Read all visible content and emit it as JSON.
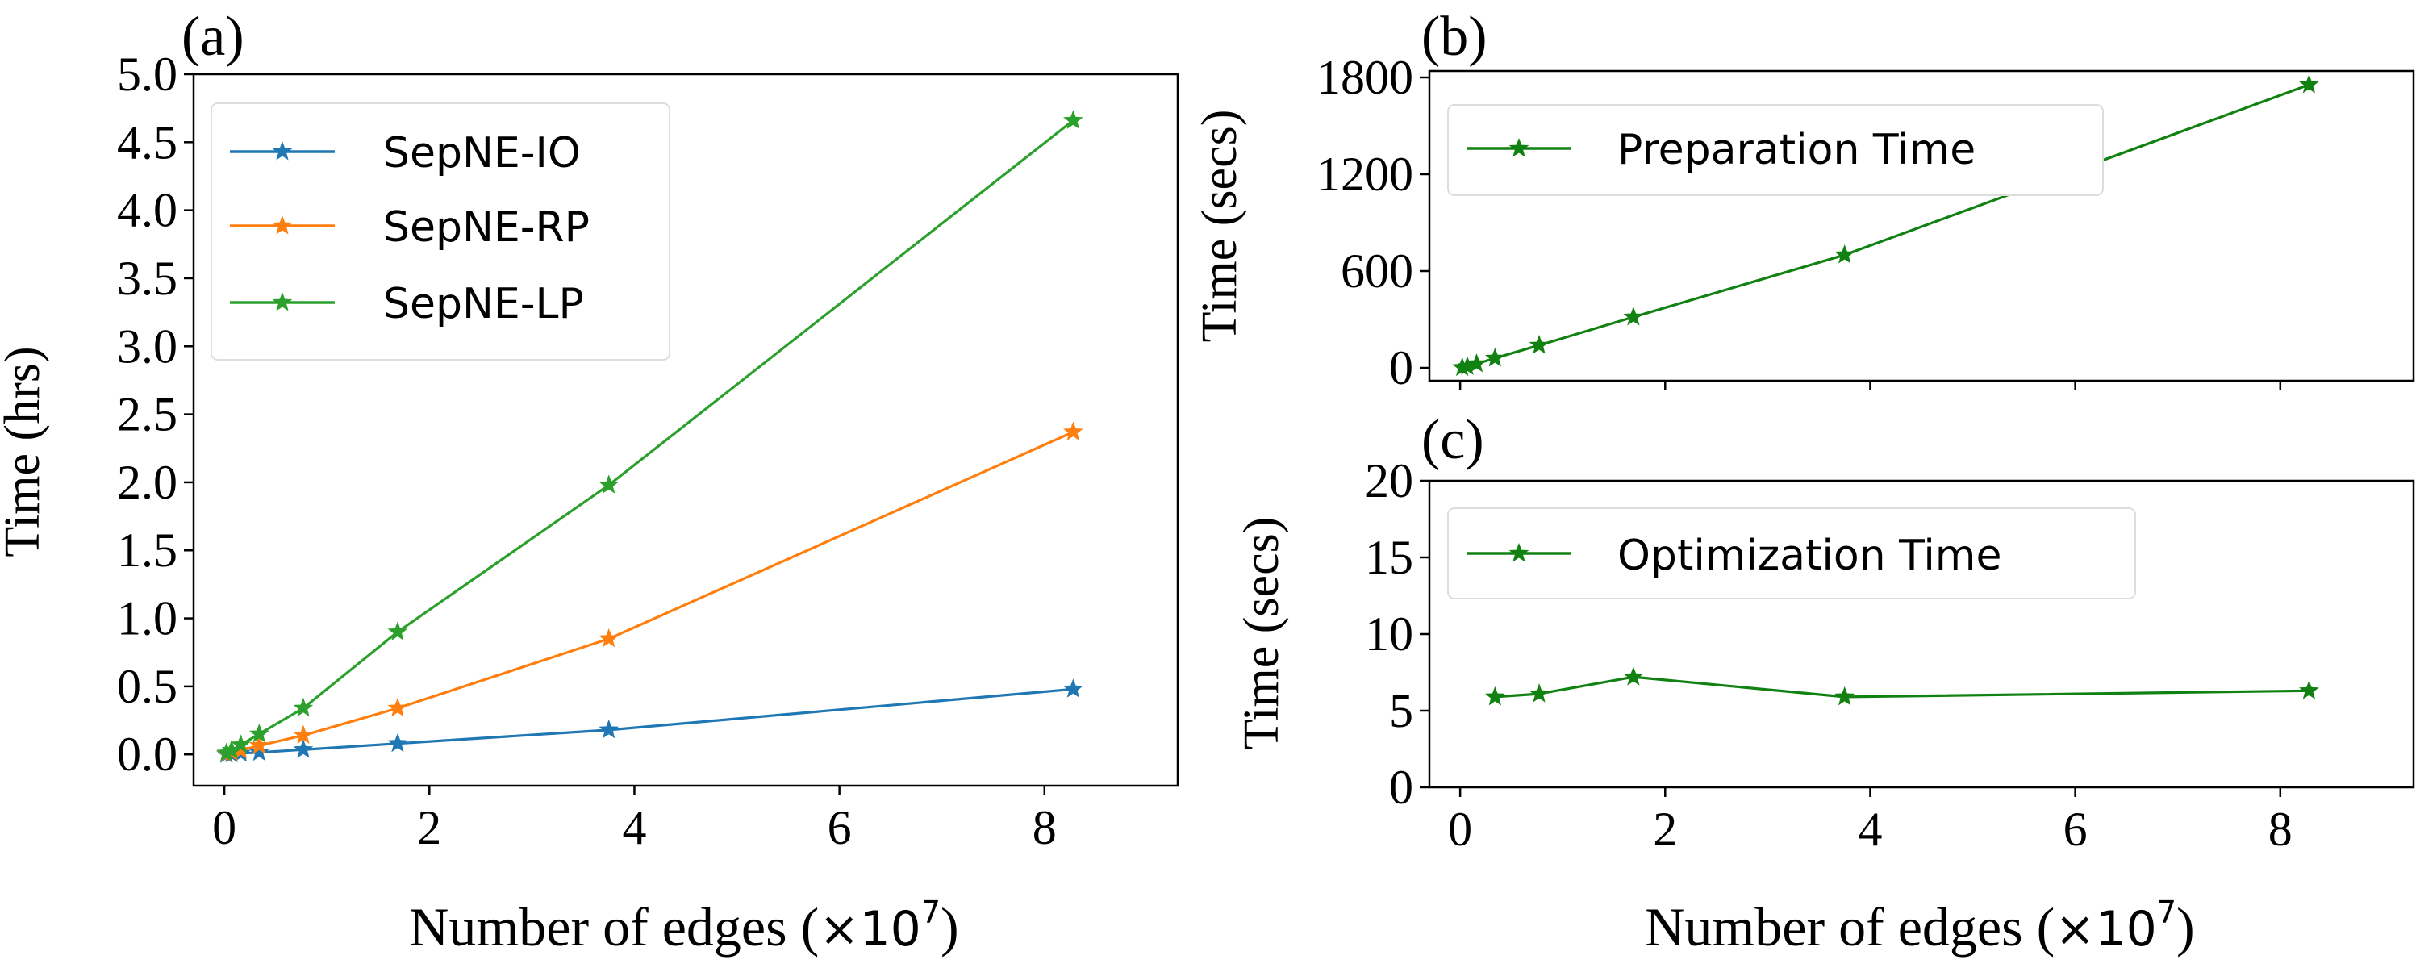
{
  "colors": {
    "blue": "#1f77b4",
    "orange": "#ff7f0e",
    "green_a": "#2ca02c",
    "green_bc": "#118211",
    "axis": "#000000",
    "legend_border": "#dddddd"
  },
  "chart_data": [
    {
      "id": "a",
      "panel_label": "(a)",
      "type": "line",
      "marker": "star",
      "xlabel_main": "Number of edges (",
      "xlabel_mult": "×10",
      "xlabel_exp": "7",
      "xlabel_close": ")",
      "ylabel": "Time (hrs)",
      "xlim": [
        -0.3,
        9.3
      ],
      "ylim": [
        -0.23,
        5.0
      ],
      "xticks": [
        0,
        2,
        4,
        6,
        8
      ],
      "xtick_labels": [
        "0",
        "2",
        "4",
        "6",
        "8"
      ],
      "yticks": [
        0.0,
        0.5,
        1.0,
        1.5,
        2.0,
        2.5,
        3.0,
        3.5,
        4.0,
        4.5,
        5.0
      ],
      "ytick_labels": [
        "0.0",
        "0.5",
        "1.0",
        "1.5",
        "2.0",
        "2.5",
        "3.0",
        "3.5",
        "4.0",
        "4.5",
        "5.0"
      ],
      "legend_position": "upper-left",
      "series": [
        {
          "name": "SepNE-IO",
          "color": "#1f77b4",
          "x": [
            0.02,
            0.07,
            0.16,
            0.34,
            0.77,
            1.69,
            3.75,
            8.28
          ],
          "y": [
            0.0,
            0.004,
            0.008,
            0.015,
            0.035,
            0.08,
            0.18,
            0.48
          ]
        },
        {
          "name": "SepNE-RP",
          "color": "#ff7f0e",
          "x": [
            0.02,
            0.07,
            0.16,
            0.34,
            0.77,
            1.69,
            3.75,
            8.28
          ],
          "y": [
            0.005,
            0.015,
            0.03,
            0.065,
            0.14,
            0.34,
            0.85,
            2.37
          ]
        },
        {
          "name": "SepNE-LP",
          "color": "#2ca02c",
          "x": [
            0.02,
            0.07,
            0.16,
            0.34,
            0.77,
            1.69,
            3.75,
            8.28
          ],
          "y": [
            0.01,
            0.03,
            0.07,
            0.15,
            0.34,
            0.9,
            1.98,
            4.66
          ]
        }
      ]
    },
    {
      "id": "b",
      "panel_label": "(b)",
      "type": "line",
      "marker": "star",
      "ylabel": "Time (secs)",
      "xlim": [
        -0.3,
        9.3
      ],
      "ylim": [
        -80,
        1840
      ],
      "xticks": [
        0,
        2,
        4,
        6,
        8
      ],
      "xtick_labels": [],
      "yticks": [
        0,
        600,
        1200,
        1800
      ],
      "ytick_labels": [
        "0",
        "600",
        "1200",
        "1800"
      ],
      "legend_position": "upper-left",
      "series": [
        {
          "name": "Preparation Time",
          "color": "#118211",
          "x": [
            0.02,
            0.07,
            0.16,
            0.34,
            0.77,
            1.69,
            3.75,
            8.28
          ],
          "y": [
            2,
            8,
            25,
            60,
            140,
            315,
            700,
            1755
          ]
        }
      ]
    },
    {
      "id": "c",
      "panel_label": "(c)",
      "type": "line",
      "marker": "star",
      "xlabel_main": "Number of edges (",
      "xlabel_mult": "×10",
      "xlabel_exp": "7",
      "xlabel_close": ")",
      "ylabel": "Time (secs)",
      "xlim": [
        -0.3,
        9.3
      ],
      "ylim": [
        0,
        20
      ],
      "xticks": [
        0,
        2,
        4,
        6,
        8
      ],
      "xtick_labels": [
        "0",
        "2",
        "4",
        "6",
        "8"
      ],
      "yticks": [
        0,
        5,
        10,
        15,
        20
      ],
      "ytick_labels": [
        "0",
        "5",
        "10",
        "15",
        "20"
      ],
      "legend_position": "upper-left",
      "series": [
        {
          "name": "Optimization Time",
          "color": "#118211",
          "x": [
            0.34,
            0.77,
            1.69,
            3.75,
            8.28
          ],
          "y": [
            5.9,
            6.1,
            7.2,
            5.9,
            6.3
          ]
        }
      ]
    }
  ]
}
